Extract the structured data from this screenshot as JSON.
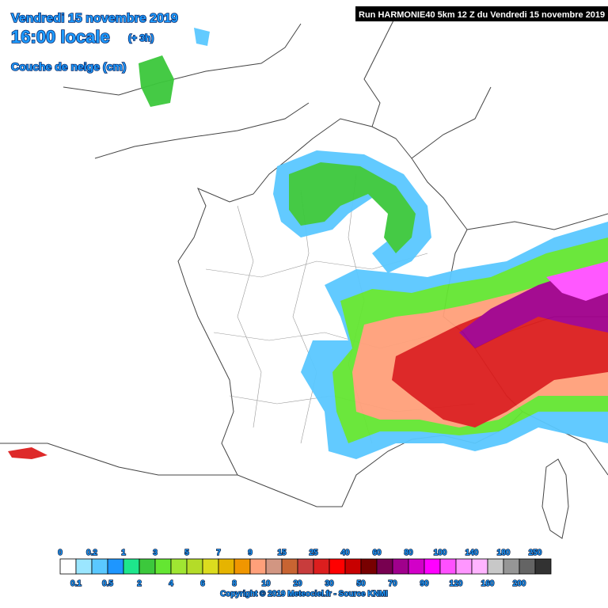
{
  "header": {
    "date": "Vendredi 15 novembre 2019",
    "time": "16:00 locale",
    "offset": "(+ 3h)",
    "variable": "Couche de neige (cm)"
  },
  "run_info": "Run HARMONIE40 5km 12 Z du Vendredi 15 novembre 2019",
  "legend": {
    "top_labels": [
      "0",
      "0.2",
      "1",
      "3",
      "5",
      "7",
      "9",
      "15",
      "25",
      "40",
      "60",
      "80",
      "100",
      "140",
      "180",
      "250"
    ],
    "bottom_labels": [
      "0.1",
      "0.5",
      "2",
      "4",
      "6",
      "8",
      "10",
      "20",
      "30",
      "50",
      "70",
      "90",
      "120",
      "160",
      "200"
    ],
    "colors": [
      "#ffffff",
      "#9be6ff",
      "#5ac8ff",
      "#1e96ff",
      "#1ee68c",
      "#3cc83c",
      "#64e632",
      "#a0e632",
      "#b4dc28",
      "#dcdc1e",
      "#e6b400",
      "#f09600",
      "#ffa07a",
      "#d29682",
      "#c86432",
      "#c83c3c",
      "#dc1e1e",
      "#ff0000",
      "#c80000",
      "#780000",
      "#780050",
      "#a0008c",
      "#d200c8",
      "#ff00ff",
      "#ff50ff",
      "#ff96ff",
      "#ffb4ff",
      "#c8c8c8",
      "#969696",
      "#646464",
      "#323232"
    ]
  },
  "copyright": "Copyright © 2019 Meteociel.fr - Source KNMI"
}
